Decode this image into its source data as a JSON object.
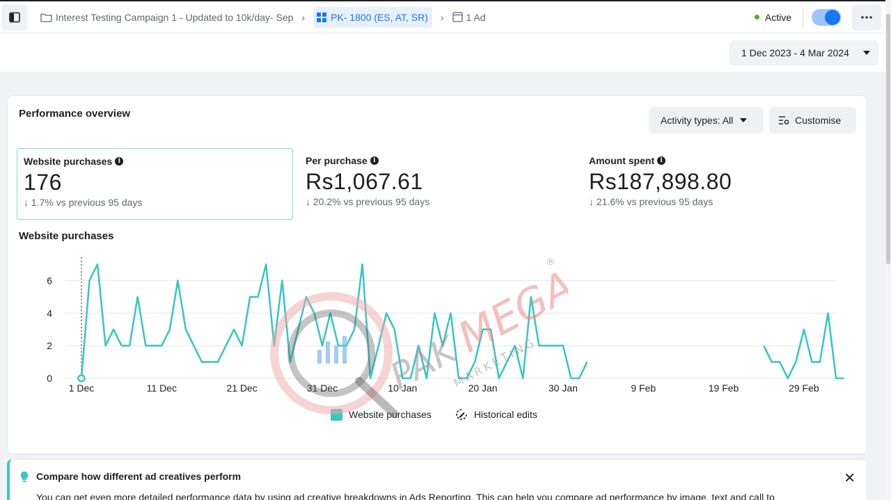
{
  "breadcrumb": {
    "campaign": "Interest Testing Campaign 1 - Updated to 10k/day- Sep",
    "ad_set": "PK- 1800 (ES, AT, SR)",
    "ad": "1 Ad"
  },
  "status": {
    "label": "Active",
    "toggle_on": true,
    "color": "#42b72a"
  },
  "date_range": "1 Dec 2023 - 4 Mar 2024",
  "overview": {
    "title": "Performance overview",
    "activity_button": "Activity types: All",
    "customise_button": "Customise"
  },
  "metrics": [
    {
      "label": "Website purchases",
      "value": "176",
      "delta": "1.7% vs previous 95 days"
    },
    {
      "label": "Per purchase",
      "value": "Rs1,067.61",
      "delta": "20.2% vs previous 95 days"
    },
    {
      "label": "Amount spent",
      "value": "Rs187,898.80",
      "delta": "21.6% vs previous 95 days"
    }
  ],
  "chart_title": "Website purchases",
  "legend": {
    "series": "Website purchases",
    "edits": "Historical edits"
  },
  "watermark": {
    "brand": "PAK",
    "brand2": "MEGA",
    "sub": "MARKETING",
    "mark": "®"
  },
  "tip": {
    "title": "Compare how different ad creatives perform",
    "body": "You can get even more detailed performance data by using ad creative breakdowns in Ads Reporting. This can help you compare ad performance by image, text and call to"
  },
  "colors": {
    "accent": "#1877f2",
    "series": "#3cc6c2",
    "grid": "#e4e6eb"
  },
  "chart_data": {
    "type": "line",
    "title": "Website purchases",
    "xlabel": "",
    "ylabel": "",
    "ylim": [
      0,
      7
    ],
    "yticks": [
      0,
      2,
      4,
      6
    ],
    "xticks": [
      "1 Dec",
      "11 Dec",
      "21 Dec",
      "31 Dec",
      "10 Jan",
      "20 Jan",
      "30 Jan",
      "9 Feb",
      "19 Feb",
      "29 Feb"
    ],
    "x_start": "2023-12-01",
    "x_end": "2024-03-04",
    "grid": true,
    "series": [
      {
        "name": "Website purchases",
        "segments": [
          {
            "start": "2023-12-01",
            "values": [
              0,
              6,
              7,
              2,
              3,
              2,
              2,
              5,
              2,
              2,
              2,
              3,
              6,
              3,
              2,
              1,
              1,
              1,
              2,
              3,
              2,
              5,
              5,
              7,
              2,
              6,
              1,
              3,
              5,
              4,
              2,
              4,
              2,
              2,
              3,
              7,
              0,
              2,
              4,
              3,
              0,
              0,
              2,
              0,
              4,
              2,
              4,
              0,
              0,
              1,
              3,
              3,
              0,
              1,
              2,
              0,
              5,
              2,
              2,
              2,
              2,
              0,
              0,
              1
            ]
          },
          {
            "start": "2024-02-24",
            "values": [
              2,
              1,
              1,
              0,
              1,
              3,
              1,
              1,
              4,
              0,
              0
            ]
          }
        ]
      }
    ]
  }
}
